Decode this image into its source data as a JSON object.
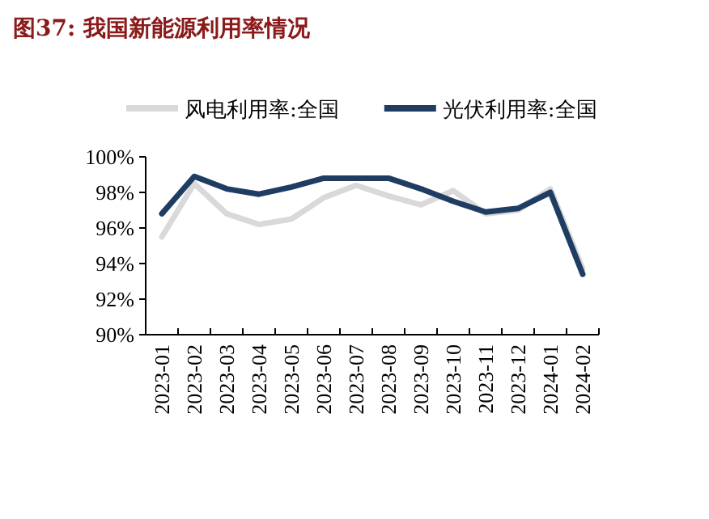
{
  "chart_data": {
    "type": "line",
    "title": "图37:  我国新能源利用率情况",
    "categories": [
      "2023-01",
      "2023-02",
      "2023-03",
      "2023-04",
      "2023-05",
      "2023-06",
      "2023-07",
      "2023-08",
      "2023-09",
      "2023-10",
      "2023-11",
      "2023-12",
      "2024-01",
      "2024-02"
    ],
    "series": [
      {
        "name": "风电利用率:全国",
        "color": "#d9d9d9",
        "values": [
          95.5,
          98.5,
          96.8,
          96.2,
          96.5,
          97.7,
          98.4,
          97.8,
          97.3,
          98.1,
          96.8,
          97.0,
          98.2,
          93.7
        ]
      },
      {
        "name": "光伏利用率:全国",
        "color": "#1f3d63",
        "values": [
          96.8,
          98.9,
          98.2,
          97.9,
          98.3,
          98.8,
          98.8,
          98.8,
          98.2,
          97.5,
          96.9,
          97.1,
          98.0,
          93.4
        ]
      }
    ],
    "ylim": [
      90,
      100
    ],
    "yticks": [
      {
        "value": 90,
        "label": "90%"
      },
      {
        "value": 92,
        "label": "92%"
      },
      {
        "value": 94,
        "label": "94%"
      },
      {
        "value": 96,
        "label": "96%"
      },
      {
        "value": 98,
        "label": "98%"
      },
      {
        "value": 100,
        "label": "100%"
      }
    ],
    "legend": "top"
  }
}
